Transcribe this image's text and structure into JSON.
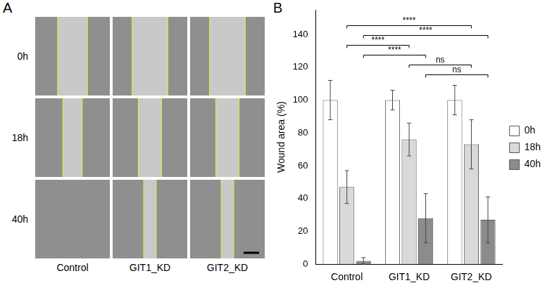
{
  "panel_a": {
    "letter": "A",
    "rows": [
      "0h",
      "18h",
      "40h"
    ],
    "columns": [
      "Control",
      "GIT1_KD",
      "GIT2_KD"
    ]
  },
  "chart_data": {
    "type": "bar",
    "letter": "B",
    "y_label": "Wound area (%)",
    "categories": [
      "Control",
      "GIT1_KD",
      "GIT2_KD"
    ],
    "series": [
      {
        "name": "0h",
        "color": "#ffffff",
        "values": [
          100,
          100,
          100
        ],
        "errors": [
          12,
          6,
          9
        ]
      },
      {
        "name": "18h",
        "color": "#d9d9d9",
        "values": [
          47,
          76,
          73
        ],
        "errors": [
          10,
          10,
          15
        ]
      },
      {
        "name": "40h",
        "color": "#8c8c8c",
        "values": [
          2,
          28,
          27
        ],
        "errors": [
          2,
          15,
          14
        ]
      }
    ],
    "ylim": [
      0,
      155
    ],
    "yticks": [
      0,
      20,
      40,
      60,
      80,
      100,
      120,
      140
    ],
    "grid": false,
    "legend": "right",
    "annotations": [
      {
        "from": [
          "Control",
          "18h"
        ],
        "to": [
          "GIT2_KD",
          "18h"
        ],
        "label": "****"
      },
      {
        "from": [
          "Control",
          "40h"
        ],
        "to": [
          "GIT2_KD",
          "40h"
        ],
        "label": "****"
      },
      {
        "from": [
          "Control",
          "18h"
        ],
        "to": [
          "GIT1_KD",
          "18h"
        ],
        "label": "****"
      },
      {
        "from": [
          "Control",
          "40h"
        ],
        "to": [
          "GIT1_KD",
          "40h"
        ],
        "label": "****"
      },
      {
        "from": [
          "GIT1_KD",
          "18h"
        ],
        "to": [
          "GIT2_KD",
          "18h"
        ],
        "label": "ns"
      },
      {
        "from": [
          "GIT1_KD",
          "40h"
        ],
        "to": [
          "GIT2_KD",
          "40h"
        ],
        "label": "ns"
      }
    ]
  }
}
